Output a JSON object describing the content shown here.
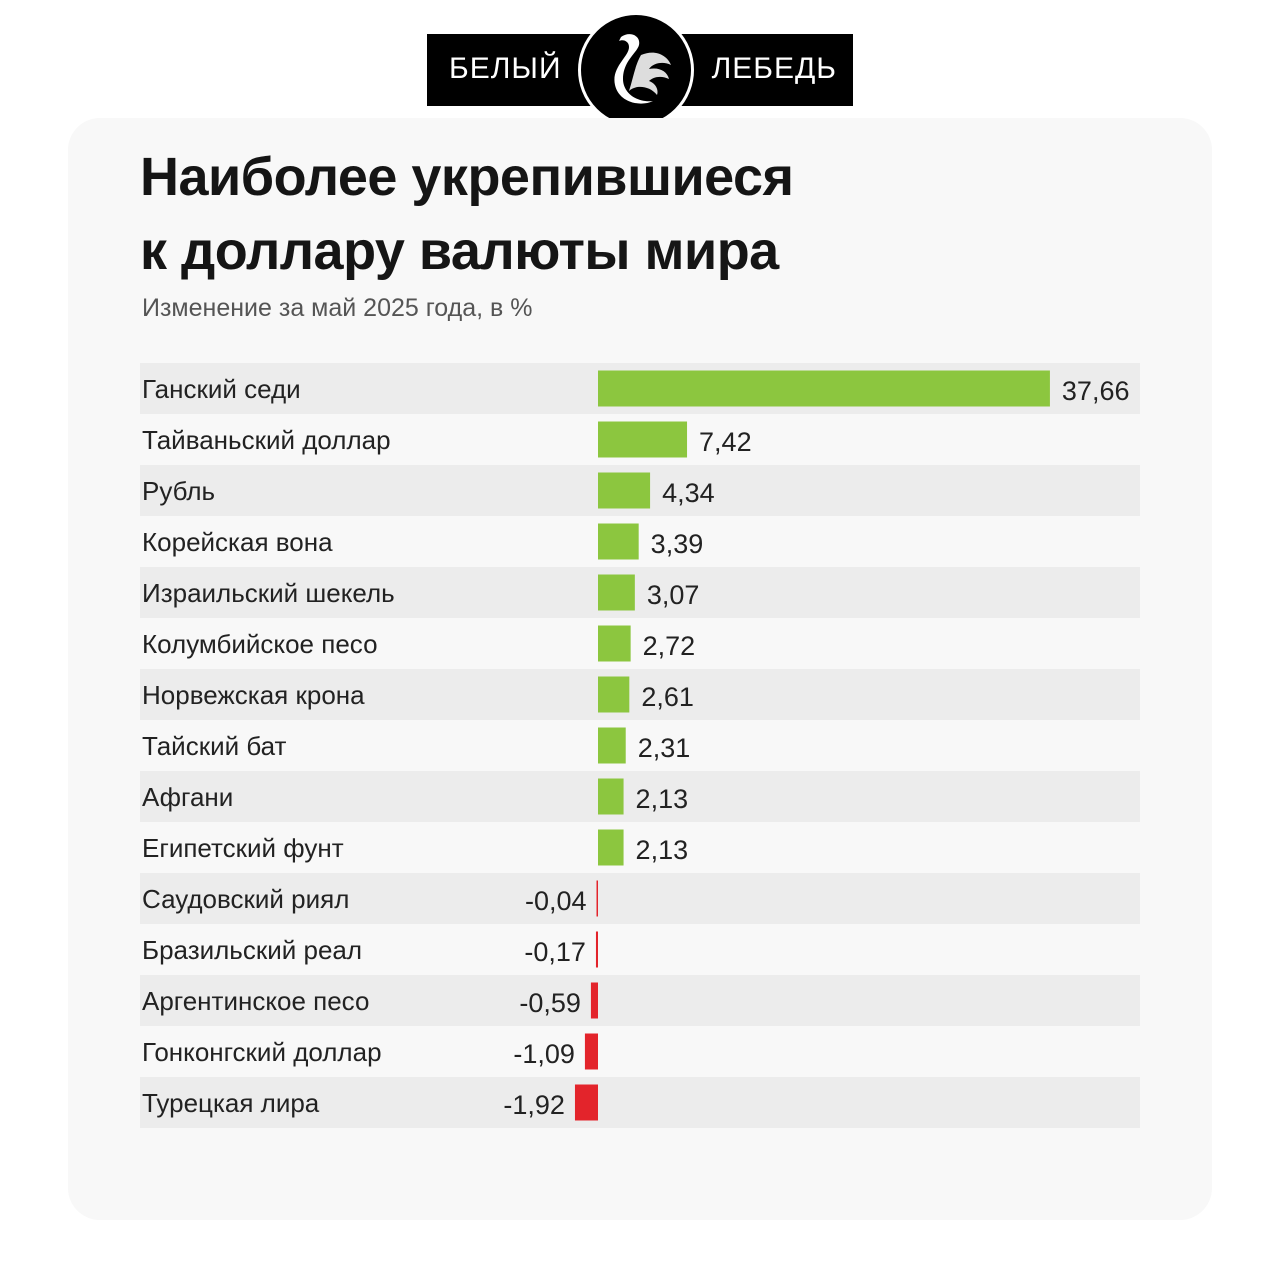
{
  "logo": {
    "left": "БЕЛЫЙ",
    "right": "ЛЕБЕДЬ"
  },
  "chart_data": {
    "type": "bar",
    "orientation": "horizontal",
    "title": "Наиболее укрепившиеся к доллару валюты мира",
    "title_lines": [
      "Наиболее укрепившиеся",
      "к доллару валюты мира"
    ],
    "subtitle": "Изменение за май 2025 года, в %",
    "categories": [
      "Ганский седи",
      "Тайваньский доллар",
      "Рубль",
      "Корейская вона",
      "Израильский шекель",
      "Колумбийское песо",
      "Норвежская крона",
      "Тайский бат",
      "Афгани",
      "Египетский фунт",
      "Саудовский риял",
      "Бразильский реал",
      "Аргентинское песо",
      "Гонконгский доллар",
      "Турецкая лира"
    ],
    "values": [
      37.66,
      7.42,
      4.34,
      3.39,
      3.07,
      2.72,
      2.61,
      2.31,
      2.13,
      2.13,
      -0.04,
      -0.17,
      -0.59,
      -1.09,
      -1.92
    ],
    "value_labels": [
      "37,66",
      "7,42",
      "4,34",
      "3,39",
      "3,07",
      "2,72",
      "2,61",
      "2,31",
      "2,13",
      "2,13",
      "-0,04",
      "-0,17",
      "-0,59",
      "-1,09",
      "-1,92"
    ],
    "colors": {
      "positive": "#8cc63f",
      "negative": "#e3242b",
      "stripe": "#ececec"
    },
    "grid": false
  }
}
